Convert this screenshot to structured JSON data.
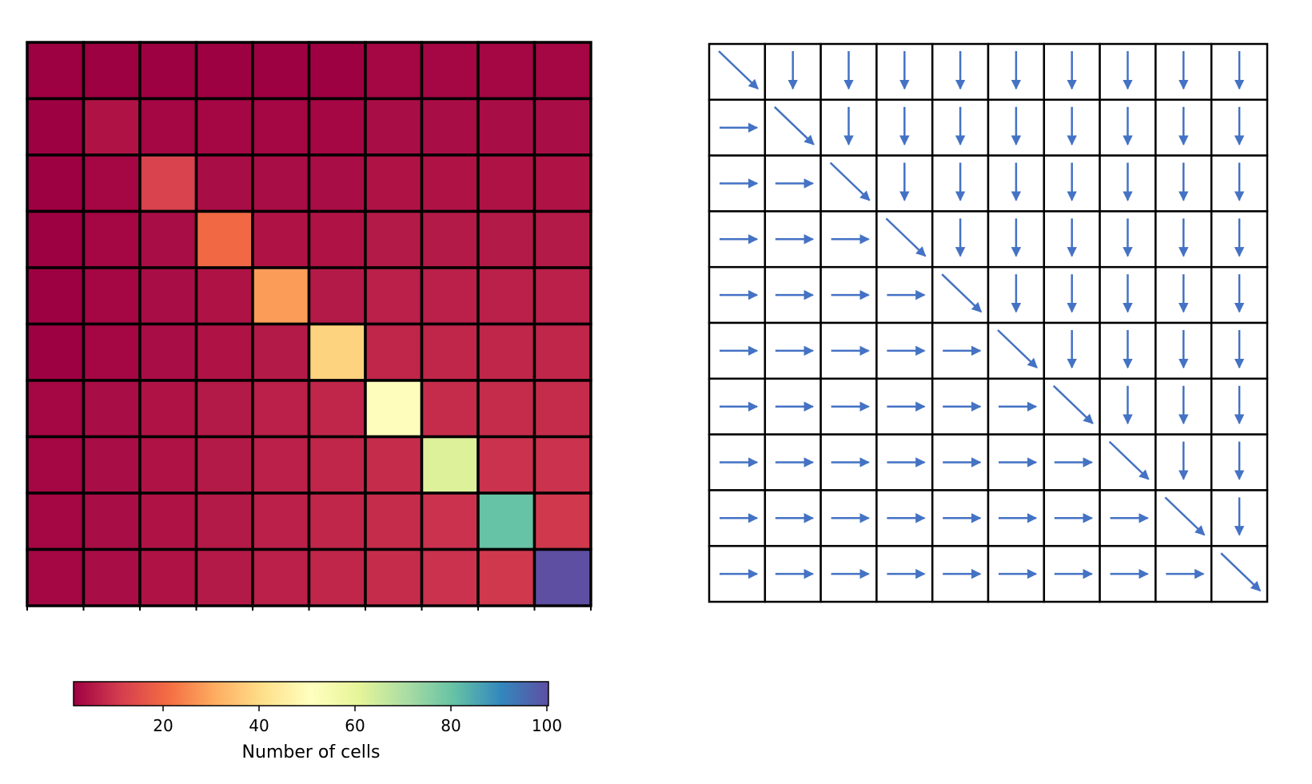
{
  "chart_data": [
    {
      "type": "heatmap",
      "title": "",
      "rows": 10,
      "cols": 10,
      "colormap": "Spectral",
      "values": [
        [
          1,
          1,
          1,
          1,
          1,
          1,
          2,
          2,
          2,
          2
        ],
        [
          1,
          4,
          2,
          2,
          2,
          2,
          3,
          3,
          3,
          3
        ],
        [
          1,
          2,
          12,
          3,
          3,
          3,
          4,
          4,
          4,
          4
        ],
        [
          1,
          2,
          3,
          20,
          4,
          4,
          5,
          5,
          5,
          5
        ],
        [
          1,
          2,
          3,
          4,
          28,
          5,
          6,
          6,
          6,
          6
        ],
        [
          1,
          2,
          3,
          4,
          5,
          38,
          7,
          7,
          7,
          7
        ],
        [
          2,
          3,
          4,
          5,
          6,
          7,
          50,
          8,
          8,
          8
        ],
        [
          2,
          3,
          4,
          5,
          6,
          7,
          8,
          62,
          9,
          9
        ],
        [
          2,
          3,
          4,
          5,
          6,
          7,
          8,
          9,
          80,
          10
        ],
        [
          2,
          3,
          4,
          5,
          6,
          7,
          8,
          9,
          10,
          100
        ]
      ],
      "colorbar": {
        "label": "Number of cells",
        "range": [
          1,
          100
        ],
        "ticks": [
          20,
          40,
          60,
          80,
          100
        ],
        "tick_labels": [
          "20",
          "40",
          "60",
          "80",
          "100"
        ],
        "orientation": "horizontal",
        "placement": "bottom"
      }
    },
    {
      "type": "table",
      "description_rule": "diagonal cells: diagonal arrow; above diagonal: down arrow; below diagonal: right arrow",
      "rows": 10,
      "cols": 10,
      "arrow_color": "#4472c4",
      "arrows": "auto"
    }
  ]
}
